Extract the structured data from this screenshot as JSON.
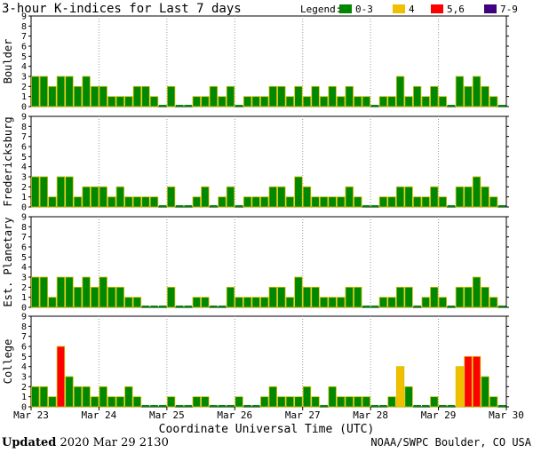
{
  "title": "3-hour K-indices for Last 7 days",
  "legend": {
    "label": "Legend:",
    "items": [
      {
        "label": "0-3",
        "color": "#008800"
      },
      {
        "label": "4",
        "color": "#f0c000"
      },
      {
        "label": "5,6",
        "color": "#ff0000"
      },
      {
        "label": "7-9",
        "color": "#400080"
      }
    ]
  },
  "xlabel": "Coordinate Universal Time (UTC)",
  "date_labels": [
    "Mar 23",
    "Mar 24",
    "Mar 25",
    "Mar 26",
    "Mar 27",
    "Mar 28",
    "Mar 29",
    "Mar 30"
  ],
  "footer": {
    "updated_label": "Updated",
    "updated_value": "2020 Mar 29 2130",
    "source": "NOAA/SWPC Boulder, CO USA"
  },
  "chart_data": [
    {
      "type": "bar",
      "station": "Boulder",
      "ylim": [
        0,
        9
      ],
      "yticks": [
        0,
        1,
        2,
        3,
        4,
        5,
        6,
        7,
        8,
        9
      ],
      "values": [
        3,
        3,
        2,
        3,
        3,
        2,
        3,
        2,
        2,
        1,
        1,
        1,
        2,
        2,
        1,
        0,
        2,
        0,
        0,
        1,
        1,
        2,
        1,
        2,
        0,
        1,
        1,
        1,
        2,
        2,
        1,
        2,
        1,
        2,
        1,
        2,
        1,
        2,
        1,
        1,
        0,
        1,
        1,
        3,
        1,
        2,
        1,
        2,
        1,
        0,
        3,
        2,
        3,
        2,
        1,
        0
      ]
    },
    {
      "type": "bar",
      "station": "Fredericksburg",
      "ylim": [
        0,
        9
      ],
      "yticks": [
        0,
        1,
        2,
        3,
        4,
        5,
        6,
        7,
        8,
        9
      ],
      "values": [
        3,
        3,
        1,
        3,
        3,
        1,
        2,
        2,
        2,
        1,
        2,
        1,
        1,
        1,
        1,
        0,
        2,
        0,
        0,
        1,
        2,
        0,
        1,
        2,
        0,
        1,
        1,
        1,
        2,
        2,
        1,
        3,
        2,
        1,
        1,
        1,
        1,
        2,
        1,
        0,
        0,
        1,
        1,
        2,
        2,
        1,
        1,
        2,
        1,
        0,
        2,
        2,
        3,
        2,
        1,
        0
      ]
    },
    {
      "type": "bar",
      "station": "Est. Planetary",
      "ylim": [
        0,
        9
      ],
      "yticks": [
        0,
        1,
        2,
        3,
        4,
        5,
        6,
        7,
        8,
        9
      ],
      "values": [
        3,
        3,
        1,
        3,
        3,
        2,
        3,
        2,
        3,
        2,
        2,
        1,
        1,
        0,
        0,
        0,
        2,
        0,
        0,
        1,
        1,
        0,
        0,
        2,
        1,
        1,
        1,
        1,
        2,
        2,
        1,
        3,
        2,
        2,
        1,
        1,
        1,
        2,
        2,
        0,
        0,
        1,
        1,
        2,
        2,
        0,
        1,
        2,
        1,
        0,
        2,
        2,
        3,
        2,
        1,
        0
      ]
    },
    {
      "type": "bar",
      "station": "College",
      "ylim": [
        0,
        9
      ],
      "yticks": [
        0,
        1,
        2,
        3,
        4,
        5,
        6,
        7,
        8,
        9
      ],
      "values": [
        2,
        2,
        1,
        6,
        3,
        2,
        2,
        1,
        2,
        1,
        1,
        2,
        1,
        0,
        0,
        0,
        1,
        0,
        0,
        1,
        1,
        0,
        0,
        0,
        1,
        0,
        0,
        1,
        2,
        1,
        1,
        1,
        2,
        1,
        0,
        2,
        1,
        1,
        1,
        1,
        0,
        0,
        1,
        4,
        2,
        0,
        0,
        1,
        0,
        0,
        4,
        5,
        5,
        3,
        1,
        0
      ]
    }
  ]
}
